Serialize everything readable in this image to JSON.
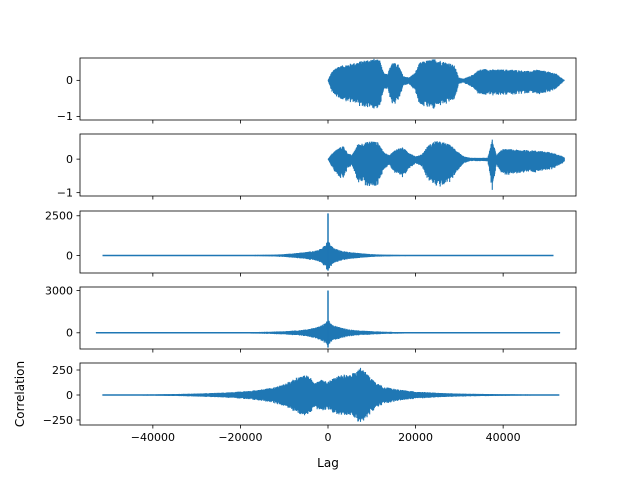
{
  "chart_data": [
    {
      "type": "line",
      "panel": "signal-1",
      "description_type": "waveform",
      "xlim": [
        -56640,
        56640
      ],
      "ylim": [
        -1.1,
        0.62
      ],
      "yticks": [
        0,
        -1
      ],
      "ytick_labels": [
        "0",
        "−1"
      ],
      "color": "#1f77b4",
      "envelope": [
        [
          0,
          0.0
        ],
        [
          800,
          0.22
        ],
        [
          2000,
          0.38
        ],
        [
          3500,
          0.42
        ],
        [
          5000,
          0.46
        ],
        [
          6500,
          0.5
        ],
        [
          8000,
          0.55
        ],
        [
          9200,
          0.58
        ],
        [
          10500,
          0.6
        ],
        [
          11800,
          0.56
        ],
        [
          12800,
          0.2
        ],
        [
          13600,
          0.18
        ],
        [
          14600,
          0.5
        ],
        [
          16000,
          0.45
        ],
        [
          17200,
          0.12
        ],
        [
          18500,
          0.08
        ],
        [
          19800,
          0.2
        ],
        [
          21000,
          0.5
        ],
        [
          22500,
          0.55
        ],
        [
          24500,
          0.6
        ],
        [
          26500,
          0.52
        ],
        [
          27800,
          0.48
        ],
        [
          29000,
          0.4
        ],
        [
          29800,
          0.08
        ],
        [
          31000,
          0.05
        ],
        [
          32500,
          0.12
        ],
        [
          33500,
          0.2
        ],
        [
          34500,
          0.3
        ],
        [
          36000,
          0.32
        ],
        [
          38000,
          0.3
        ],
        [
          40000,
          0.3
        ],
        [
          42000,
          0.3
        ],
        [
          44000,
          0.28
        ],
        [
          46000,
          0.26
        ],
        [
          48000,
          0.3
        ],
        [
          50000,
          0.25
        ],
        [
          52000,
          0.2
        ],
        [
          53500,
          0.05
        ],
        [
          54000,
          0.0
        ]
      ],
      "asymmetry_neg": 1.4
    },
    {
      "type": "line",
      "panel": "signal-2",
      "description_type": "waveform",
      "xlim": [
        -56640,
        56640
      ],
      "ylim": [
        -1.1,
        0.75
      ],
      "yticks": [
        0,
        -1
      ],
      "ytick_labels": [
        "0",
        "−1"
      ],
      "color": "#1f77b4",
      "envelope": [
        [
          0,
          0.0
        ],
        [
          800,
          0.15
        ],
        [
          2000,
          0.3
        ],
        [
          3500,
          0.4
        ],
        [
          4500,
          0.18
        ],
        [
          5500,
          0.12
        ],
        [
          6800,
          0.45
        ],
        [
          8500,
          0.5
        ],
        [
          10000,
          0.55
        ],
        [
          11500,
          0.5
        ],
        [
          12800,
          0.2
        ],
        [
          14000,
          0.12
        ],
        [
          15500,
          0.3
        ],
        [
          17000,
          0.35
        ],
        [
          18500,
          0.2
        ],
        [
          20000,
          0.08
        ],
        [
          21500,
          0.15
        ],
        [
          22800,
          0.4
        ],
        [
          24500,
          0.55
        ],
        [
          26500,
          0.5
        ],
        [
          28000,
          0.42
        ],
        [
          29500,
          0.25
        ],
        [
          31000,
          0.08
        ],
        [
          32500,
          0.04
        ],
        [
          34000,
          0.04
        ],
        [
          35500,
          0.04
        ],
        [
          36500,
          0.04
        ],
        [
          37500,
          0.6
        ],
        [
          38500,
          0.1
        ],
        [
          39500,
          0.3
        ],
        [
          41500,
          0.3
        ],
        [
          43500,
          0.28
        ],
        [
          46000,
          0.27
        ],
        [
          48500,
          0.25
        ],
        [
          51000,
          0.2
        ],
        [
          53000,
          0.12
        ],
        [
          54000,
          0.05
        ]
      ],
      "asymmetry_neg": 1.6
    },
    {
      "type": "line",
      "panel": "autocorrelation-1",
      "description_type": "correlation",
      "xlim": [
        -56640,
        56640
      ],
      "ylim": [
        -1100,
        2800
      ],
      "yticks": [
        2500,
        0
      ],
      "ytick_labels": [
        "2500",
        "0"
      ],
      "color": "#1f77b4",
      "x_extent": [
        -51500,
        51500
      ],
      "peak": {
        "x": 0,
        "y": 2650
      },
      "trough": -950,
      "envelope": [
        [
          0,
          1000
        ],
        [
          500,
          700
        ],
        [
          1500,
          450
        ],
        [
          3000,
          300
        ],
        [
          5000,
          220
        ],
        [
          7000,
          160
        ],
        [
          10000,
          90
        ],
        [
          13000,
          55
        ],
        [
          17000,
          35
        ],
        [
          22000,
          25
        ],
        [
          28000,
          18
        ],
        [
          35000,
          12
        ],
        [
          45000,
          6
        ],
        [
          51500,
          3
        ]
      ]
    },
    {
      "type": "line",
      "panel": "autocorrelation-2",
      "description_type": "correlation",
      "xlim": [
        -56640,
        56640
      ],
      "ylim": [
        -1150,
        3250
      ],
      "yticks": [
        3000,
        0
      ],
      "ytick_labels": [
        "3000",
        "0"
      ],
      "color": "#1f77b4",
      "x_extent": [
        -53000,
        53000
      ],
      "peak": {
        "x": 0,
        "y": 3000
      },
      "trough": -1050,
      "envelope": [
        [
          0,
          1000
        ],
        [
          500,
          700
        ],
        [
          1500,
          520
        ],
        [
          3000,
          360
        ],
        [
          5000,
          240
        ],
        [
          7000,
          170
        ],
        [
          10000,
          120
        ],
        [
          13000,
          80
        ],
        [
          17000,
          55
        ],
        [
          22000,
          35
        ],
        [
          28000,
          25
        ],
        [
          35000,
          18
        ],
        [
          45000,
          10
        ],
        [
          53000,
          4
        ]
      ]
    },
    {
      "type": "line",
      "panel": "cross-correlation",
      "description_type": "cross-correlation",
      "xlim": [
        -56640,
        56640
      ],
      "ylim": [
        -300,
        320
      ],
      "yticks": [
        250,
        0,
        -250
      ],
      "ytick_labels": [
        "250",
        "0",
        "−250"
      ],
      "xticks": [
        -40000,
        -20000,
        0,
        20000,
        40000
      ],
      "xtick_labels": [
        "−40000",
        "−20000",
        "0",
        "20000",
        "40000"
      ],
      "xlabel": "Lag",
      "ylabel": "Correlation",
      "color": "#1f77b4",
      "x_extent": [
        -51500,
        52800
      ],
      "envelope": [
        [
          -51500,
          3
        ],
        [
          -40000,
          6
        ],
        [
          -30000,
          15
        ],
        [
          -22000,
          28
        ],
        [
          -16000,
          50
        ],
        [
          -12000,
          80
        ],
        [
          -9000,
          130
        ],
        [
          -7500,
          170
        ],
        [
          -6000,
          190
        ],
        [
          -4500,
          200
        ],
        [
          -3000,
          120
        ],
        [
          -1500,
          160
        ],
        [
          0,
          130
        ],
        [
          1500,
          180
        ],
        [
          3000,
          210
        ],
        [
          4500,
          200
        ],
        [
          6500,
          230
        ],
        [
          7500,
          280
        ],
        [
          9000,
          210
        ],
        [
          11000,
          120
        ],
        [
          13000,
          80
        ],
        [
          16000,
          55
        ],
        [
          20000,
          35
        ],
        [
          25000,
          22
        ],
        [
          30000,
          15
        ],
        [
          40000,
          8
        ],
        [
          52800,
          3
        ]
      ]
    }
  ]
}
